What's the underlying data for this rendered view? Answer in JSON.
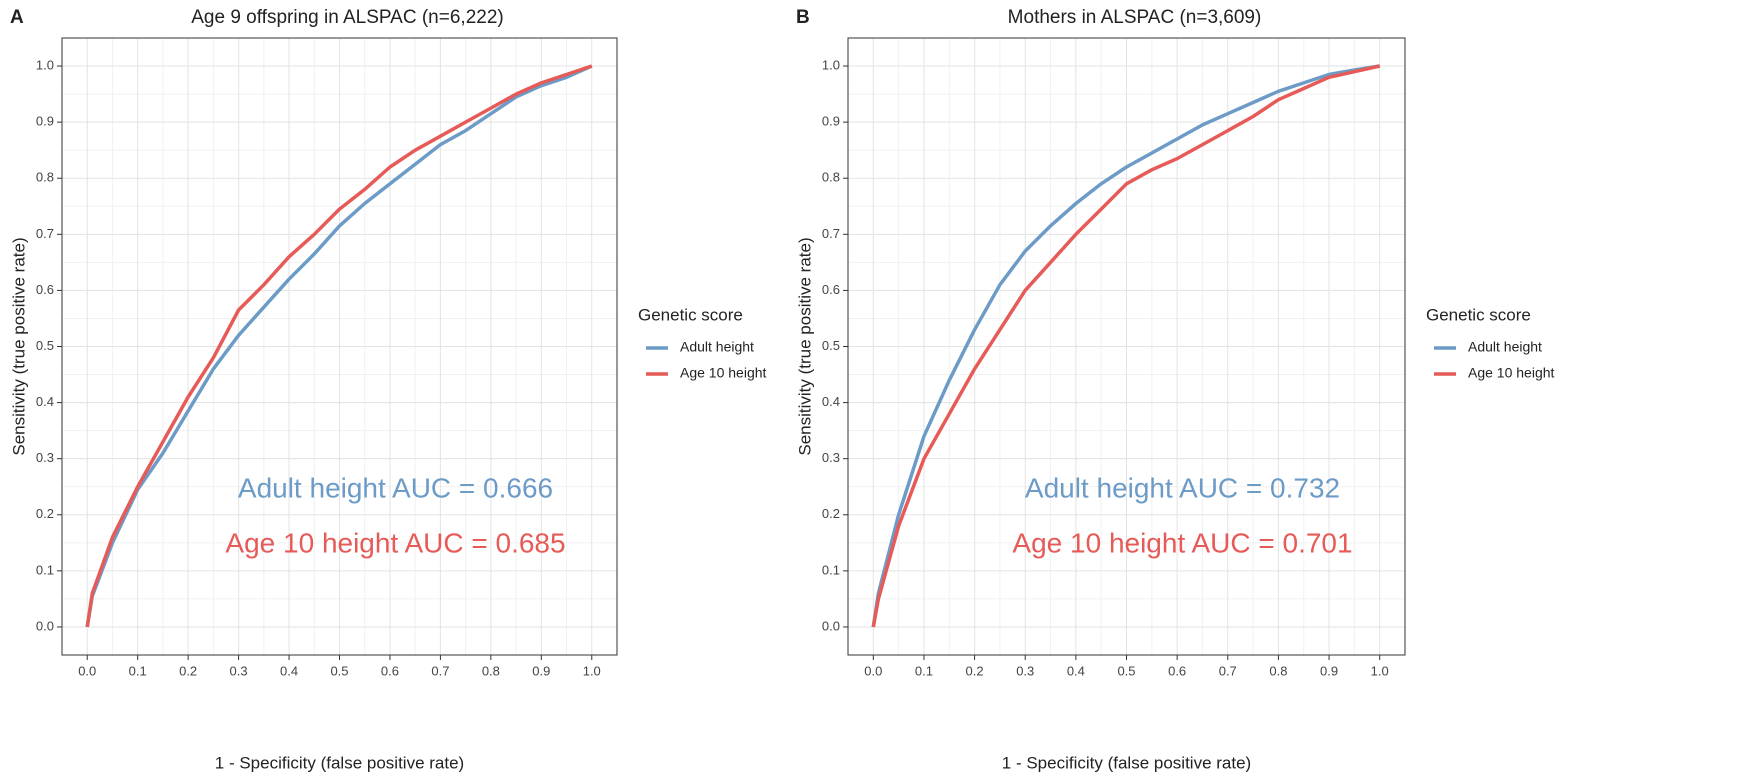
{
  "chart_data": [
    {
      "type": "line",
      "panel": "A",
      "title": "Age 9 offspring in ALSPAC (n=6,222)",
      "xlabel": "1 - Specificity (false positive rate)",
      "ylabel": "Sensitivity (true positive rate)",
      "xlim": [
        -0.05,
        1.05
      ],
      "ylim": [
        -0.05,
        1.05
      ],
      "xticks": [
        {
          "value": 0,
          "label": "0.0"
        },
        0.1,
        0.2,
        0.3,
        0.4,
        0.5,
        0.6,
        0.7,
        0.8,
        0.9,
        {
          "value": 1,
          "label": "1.0"
        }
      ],
      "yticks": [
        {
          "value": 0,
          "label": "0.0"
        },
        0.1,
        0.2,
        0.3,
        0.4,
        0.5,
        0.6,
        0.7,
        0.8,
        0.9,
        {
          "value": 1,
          "label": "1.0"
        }
      ],
      "grid": true,
      "legend_title": "Genetic score",
      "x": [
        0,
        0.01,
        0.05,
        0.1,
        0.15,
        0.2,
        0.25,
        0.3,
        0.35,
        0.4,
        0.45,
        0.5,
        0.55,
        0.6,
        0.65,
        0.7,
        0.75,
        0.8,
        0.85,
        0.9,
        0.95,
        1
      ],
      "series": [
        {
          "name": "Adult height",
          "color": "#6b9bc6",
          "values": [
            0,
            0.055,
            0.15,
            0.245,
            0.31,
            0.385,
            0.46,
            0.52,
            0.57,
            0.62,
            0.665,
            0.715,
            0.755,
            0.79,
            0.825,
            0.86,
            0.885,
            0.915,
            0.945,
            0.965,
            0.98,
            1
          ]
        },
        {
          "name": "Age 10 height",
          "color": "#e65a57",
          "values": [
            0,
            0.06,
            0.16,
            0.25,
            0.33,
            0.41,
            0.48,
            0.565,
            0.61,
            0.66,
            0.7,
            0.745,
            0.78,
            0.82,
            0.85,
            0.875,
            0.9,
            0.925,
            0.95,
            0.97,
            0.985,
            1
          ]
        }
      ],
      "annotations": [
        {
          "text": "Adult height AUC = 0.666",
          "color": "#6b9bc6"
        },
        {
          "text": "Age 10 height AUC = 0.685",
          "color": "#e65a57"
        }
      ]
    },
    {
      "type": "line",
      "panel": "B",
      "title": "Mothers in ALSPAC (n=3,609)",
      "xlabel": "1 - Specificity (false positive rate)",
      "ylabel": "Sensitivity (true positive rate)",
      "xlim": [
        -0.05,
        1.05
      ],
      "ylim": [
        -0.05,
        1.05
      ],
      "xticks": [
        {
          "value": 0,
          "label": "0.0"
        },
        0.1,
        0.2,
        0.3,
        0.4,
        0.5,
        0.6,
        0.7,
        0.8,
        0.9,
        {
          "value": 1,
          "label": "1.0"
        }
      ],
      "yticks": [
        {
          "value": 0,
          "label": "0.0"
        },
        0.1,
        0.2,
        0.3,
        0.4,
        0.5,
        0.6,
        0.7,
        0.8,
        0.9,
        {
          "value": 1,
          "label": "1.0"
        }
      ],
      "grid": true,
      "legend_title": "Genetic score",
      "x": [
        0,
        0.01,
        0.05,
        0.1,
        0.15,
        0.2,
        0.25,
        0.3,
        0.35,
        0.4,
        0.45,
        0.5,
        0.55,
        0.6,
        0.65,
        0.7,
        0.75,
        0.8,
        0.85,
        0.9,
        0.95,
        1
      ],
      "series": [
        {
          "name": "Adult height",
          "color": "#6b9bc6",
          "values": [
            0,
            0.06,
            0.2,
            0.34,
            0.44,
            0.53,
            0.61,
            0.67,
            0.715,
            0.755,
            0.79,
            0.82,
            0.845,
            0.87,
            0.895,
            0.915,
            0.935,
            0.955,
            0.97,
            0.985,
            0.993,
            1
          ]
        },
        {
          "name": "Age 10 height",
          "color": "#e65a57",
          "values": [
            0,
            0.05,
            0.18,
            0.3,
            0.38,
            0.46,
            0.53,
            0.6,
            0.65,
            0.7,
            0.745,
            0.79,
            0.815,
            0.835,
            0.86,
            0.885,
            0.91,
            0.94,
            0.96,
            0.98,
            0.99,
            1
          ]
        }
      ],
      "annotations": [
        {
          "text": "Adult height AUC = 0.732",
          "color": "#6b9bc6"
        },
        {
          "text": "Age 10 height AUC = 0.701",
          "color": "#e65a57"
        }
      ]
    }
  ]
}
